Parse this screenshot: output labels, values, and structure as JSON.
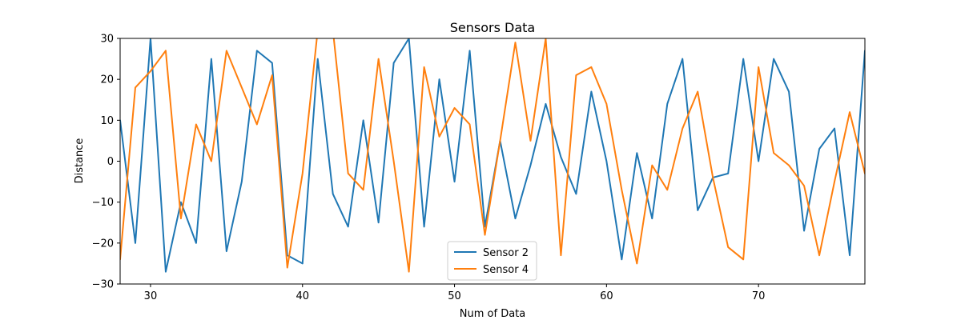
{
  "chart_data": {
    "type": "line",
    "title": "Sensors Data",
    "xlabel": "Num of Data",
    "ylabel": "Distance",
    "xlim": [
      28,
      77
    ],
    "ylim": [
      -30,
      30
    ],
    "xticks": [
      30,
      40,
      50,
      60,
      70
    ],
    "yticks": [
      -30,
      -20,
      -10,
      0,
      10,
      20,
      30
    ],
    "grid": false,
    "legend_position": "bottom-center",
    "x": [
      28,
      29,
      30,
      31,
      32,
      33,
      34,
      35,
      36,
      37,
      38,
      39,
      40,
      41,
      42,
      43,
      44,
      45,
      46,
      47,
      48,
      49,
      50,
      51,
      52,
      53,
      54,
      55,
      56,
      57,
      58,
      59,
      60,
      61,
      62,
      63,
      64,
      65,
      66,
      67,
      68,
      69,
      70,
      71,
      72,
      73,
      74,
      75,
      76,
      77
    ],
    "series": [
      {
        "name": "Sensor 2",
        "color": "#1f77b4",
        "values": [
          10,
          -20,
          30,
          -27,
          -10,
          -20,
          25,
          -22,
          -5,
          27,
          24,
          -23,
          -25,
          25,
          -8,
          -16,
          10,
          -15,
          24,
          30,
          -16,
          20,
          -5,
          27,
          -16,
          5,
          -14,
          -1,
          14,
          1,
          -8,
          17,
          0,
          -24,
          2,
          -14,
          14,
          25,
          -12,
          -4,
          -3,
          25,
          0,
          25,
          17,
          -17,
          3,
          8,
          -23,
          27
        ]
      },
      {
        "name": "Sensor 4",
        "color": "#ff7f0e",
        "values": [
          -24,
          18,
          22,
          27,
          -14,
          9,
          0,
          27,
          18,
          9,
          21,
          -26,
          -3,
          32,
          32,
          -3,
          -7,
          25,
          0,
          -27,
          23,
          6,
          13,
          9,
          -18,
          5,
          29,
          5,
          30,
          -23,
          21,
          23,
          14,
          -7,
          -25,
          -1,
          -7,
          8,
          17,
          -4,
          -21,
          -24,
          23,
          2,
          -1,
          -6,
          -23,
          -5,
          12,
          -3
        ]
      }
    ]
  }
}
